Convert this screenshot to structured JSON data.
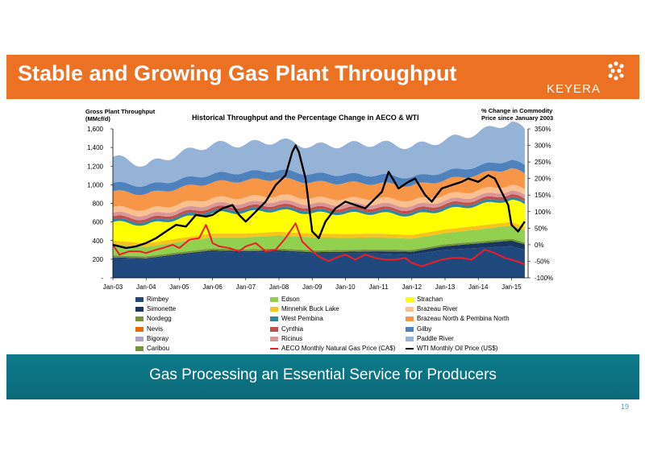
{
  "header": {
    "title": "Stable and Growing Gas Plant Throughput",
    "logo_text": "KEYERA"
  },
  "footer": {
    "banner_text": "Gas Processing an Essential Service for Producers",
    "page_number": "19"
  },
  "colors": {
    "header_orange": "#ec7122",
    "banner_teal": "#0d7a8a",
    "aeco_line": "#ee1c25",
    "wti_line": "#000000"
  },
  "chart_data": {
    "type": "area",
    "title": "Historical Throughput and the Percentage Change in AECO & WTI",
    "ylabel_left": "Gross Plant Throughput (MMcf/d)",
    "ylabel_left_lines": [
      "Gross Plant Throughput",
      "(MMcf/d)"
    ],
    "ylabel_right": "% Change in Commodity Price since January 2003",
    "ylabel_right_lines": [
      "% Change in Commodity",
      "Price since January 2003"
    ],
    "ylim_left": [
      0,
      1600
    ],
    "ylim_right": [
      -100,
      350
    ],
    "left_ticks": [
      "-",
      "200",
      "400",
      "600",
      "800",
      "1,000",
      "1,200",
      "1,400",
      "1,600"
    ],
    "left_tick_values": [
      0,
      200,
      400,
      600,
      800,
      1000,
      1200,
      1400,
      1600
    ],
    "right_ticks": [
      "-100%",
      "-50%",
      "0%",
      "50%",
      "100%",
      "150%",
      "200%",
      "250%",
      "300%",
      "350%"
    ],
    "right_tick_values": [
      -100,
      -50,
      0,
      50,
      100,
      150,
      200,
      250,
      300,
      350
    ],
    "x_ticks": [
      "Jan-03",
      "Jan-04",
      "Jan-05",
      "Jan-06",
      "Jan-07",
      "Jan-08",
      "Jan-09",
      "Jan-10",
      "Jan-11",
      "Jan-12",
      "Jan-13",
      "Jan-14",
      "Jan-15"
    ],
    "x_tick_years": [
      2003,
      2004,
      2005,
      2006,
      2007,
      2008,
      2009,
      2010,
      2011,
      2012,
      2013,
      2014,
      2015
    ],
    "x_range": [
      2003.0,
      2015.5
    ],
    "series": [
      {
        "name": "Rimbey",
        "color": "#1f497d",
        "years": [
          2003,
          2004,
          2005,
          2006,
          2007,
          2008,
          2009,
          2010,
          2011,
          2012,
          2013,
          2014,
          2015,
          2015.4
        ],
        "values": [
          210,
          200,
          240,
          280,
          270,
          280,
          260,
          260,
          260,
          250,
          300,
          320,
          340,
          300
        ]
      },
      {
        "name": "Simonette",
        "color": "#17375e",
        "years": [
          2003,
          2004,
          2005,
          2006,
          2007,
          2008,
          2009,
          2010,
          2011,
          2012,
          2013,
          2014,
          2015,
          2015.4
        ],
        "values": [
          10,
          10,
          15,
          15,
          15,
          15,
          15,
          20,
          25,
          30,
          40,
          50,
          60,
          60
        ]
      },
      {
        "name": "Nordegg",
        "color": "#76923c",
        "years": [
          2003,
          2004,
          2005,
          2006,
          2007,
          2008,
          2009,
          2010,
          2011,
          2012,
          2013,
          2014,
          2015,
          2015.4
        ],
        "values": [
          20,
          20,
          20,
          20,
          20,
          20,
          20,
          20,
          20,
          20,
          20,
          20,
          20,
          20
        ]
      },
      {
        "name": "Nevis",
        "color": "#e46c0a",
        "years": [
          2003,
          2004,
          2005,
          2006,
          2007,
          2008,
          2009,
          2010,
          2011,
          2012,
          2013,
          2014,
          2015,
          2015.4
        ],
        "values": [
          0,
          0,
          0,
          0,
          0,
          0,
          0,
          0,
          0,
          0,
          0,
          0,
          0,
          0
        ]
      },
      {
        "name": "Bigoray",
        "color": "#b3a2c7",
        "years": [
          2003,
          2004,
          2005,
          2006,
          2007,
          2008,
          2009,
          2010,
          2011,
          2012,
          2013,
          2014,
          2015,
          2015.4
        ],
        "values": [
          0,
          0,
          0,
          0,
          0,
          0,
          0,
          0,
          0,
          0,
          0,
          0,
          0,
          0
        ]
      },
      {
        "name": "Caribou",
        "color": "#77933c",
        "years": [
          2003,
          2004,
          2005,
          2006,
          2007,
          2008,
          2009,
          2010,
          2011,
          2012,
          2013,
          2014,
          2015,
          2015.4
        ],
        "values": [
          0,
          0,
          0,
          0,
          0,
          0,
          0,
          0,
          0,
          0,
          0,
          0,
          0,
          0
        ]
      },
      {
        "name": "Edson",
        "color": "#92d050",
        "years": [
          2003,
          2004,
          2005,
          2006,
          2007,
          2008,
          2009,
          2010,
          2011,
          2012,
          2013,
          2014,
          2015,
          2015.4
        ],
        "values": [
          120,
          100,
          110,
          120,
          130,
          140,
          140,
          130,
          130,
          120,
          120,
          130,
          140,
          130
        ]
      },
      {
        "name": "Minnehik Buck Lake",
        "color": "#f7c31d",
        "years": [
          2003,
          2004,
          2005,
          2006,
          2007,
          2008,
          2009,
          2010,
          2011,
          2012,
          2013,
          2014,
          2015,
          2015.4
        ],
        "values": [
          40,
          40,
          40,
          40,
          40,
          40,
          40,
          40,
          40,
          40,
          40,
          40,
          40,
          40
        ]
      },
      {
        "name": "West Pembina",
        "color": "#31859c",
        "years": [
          2003,
          2004,
          2005,
          2006,
          2007,
          2008,
          2009,
          2010,
          2011,
          2012,
          2013,
          2014,
          2015,
          2015.4
        ],
        "values": [
          30,
          30,
          30,
          30,
          30,
          30,
          30,
          30,
          30,
          30,
          30,
          30,
          30,
          30
        ]
      },
      {
        "name": "Cynthia",
        "color": "#c0504d",
        "years": [
          2003,
          2004,
          2005,
          2006,
          2007,
          2008,
          2009,
          2010,
          2011,
          2012,
          2013,
          2014,
          2015,
          2015.4
        ],
        "values": [
          30,
          30,
          30,
          30,
          30,
          30,
          30,
          30,
          30,
          30,
          30,
          30,
          30,
          30
        ]
      },
      {
        "name": "Ricinus",
        "color": "#d99694",
        "years": [
          2003,
          2004,
          2005,
          2006,
          2007,
          2008,
          2009,
          2010,
          2011,
          2012,
          2013,
          2014,
          2015,
          2015.4
        ],
        "values": [
          40,
          40,
          40,
          40,
          40,
          40,
          40,
          40,
          40,
          40,
          40,
          40,
          40,
          40
        ]
      },
      {
        "name": "AECO Monthly Natural Gas Price (CA$)",
        "color": "#ee1c25",
        "is_line": true
      },
      {
        "name": "Strachan",
        "color": "#ffff00",
        "years": [
          2003,
          2004,
          2005,
          2006,
          2007,
          2008,
          2009,
          2010,
          2011,
          2012,
          2013,
          2014,
          2015,
          2015.4
        ],
        "values": [
          200,
          200,
          210,
          220,
          230,
          230,
          220,
          220,
          220,
          210,
          210,
          220,
          240,
          230
        ]
      },
      {
        "name": "Brazeau River",
        "color": "#fac090",
        "years": [
          2003,
          2004,
          2005,
          2006,
          2007,
          2008,
          2009,
          2010,
          2011,
          2012,
          2013,
          2014,
          2015,
          2015.4
        ],
        "values": [
          60,
          60,
          60,
          60,
          60,
          60,
          60,
          60,
          60,
          60,
          60,
          60,
          60,
          60
        ]
      },
      {
        "name": "Brazeau North & Pembina North",
        "color": "#f79646",
        "years": [
          2003,
          2004,
          2005,
          2006,
          2007,
          2008,
          2009,
          2010,
          2011,
          2012,
          2013,
          2014,
          2015,
          2015.4
        ],
        "values": [
          170,
          170,
          170,
          170,
          180,
          180,
          170,
          170,
          160,
          160,
          160,
          170,
          180,
          170
        ]
      },
      {
        "name": "Gilby",
        "color": "#4f81bd",
        "years": [
          2003,
          2004,
          2005,
          2006,
          2007,
          2008,
          2009,
          2010,
          2011,
          2012,
          2013,
          2014,
          2015,
          2015.4
        ],
        "values": [
          90,
          90,
          90,
          90,
          90,
          90,
          90,
          90,
          90,
          90,
          90,
          90,
          90,
          90
        ]
      },
      {
        "name": "Paddle River",
        "color": "#95b3d7",
        "years": [
          2003,
          2004,
          2005,
          2006,
          2007,
          2008,
          2009,
          2010,
          2011,
          2012,
          2013,
          2014,
          2015,
          2015.4
        ],
        "values": [
          280,
          220,
          280,
          320,
          300,
          320,
          300,
          320,
          340,
          330,
          340,
          360,
          410,
          380
        ]
      },
      {
        "name": "WTI Monthly Oil Price (US$)",
        "color": "#000000",
        "is_line": true
      }
    ],
    "lines": {
      "aeco": {
        "name": "AECO Monthly Natural Gas Price (CA$)",
        "years": [
          2003.0,
          2003.2,
          2003.5,
          2003.8,
          2004.0,
          2004.3,
          2004.5,
          2004.8,
          2005.0,
          2005.3,
          2005.6,
          2005.8,
          2005.9,
          2006.0,
          2006.2,
          2006.5,
          2006.8,
          2007.0,
          2007.3,
          2007.6,
          2007.9,
          2008.2,
          2008.4,
          2008.5,
          2008.7,
          2008.9,
          2009.2,
          2009.5,
          2009.7,
          2010.0,
          2010.3,
          2010.6,
          2010.9,
          2011.2,
          2011.5,
          2011.8,
          2012.0,
          2012.3,
          2012.6,
          2012.9,
          2013.2,
          2013.5,
          2013.8,
          2014.0,
          2014.2,
          2014.5,
          2014.8,
          2015.0,
          2015.3,
          2015.4
        ],
        "values": [
          0,
          -30,
          -20,
          -20,
          -25,
          -15,
          -10,
          0,
          -10,
          15,
          20,
          60,
          35,
          5,
          -5,
          -10,
          -20,
          -5,
          5,
          -20,
          -15,
          20,
          50,
          65,
          10,
          -10,
          -35,
          -50,
          -40,
          -30,
          -45,
          -30,
          -40,
          -45,
          -45,
          -40,
          -55,
          -65,
          -55,
          -45,
          -40,
          -40,
          -45,
          -30,
          -15,
          -25,
          -40,
          -45,
          -55,
          -60
        ]
      },
      "wti": {
        "name": "WTI Monthly Oil Price (US$)",
        "years": [
          2003.0,
          2003.2,
          2003.4,
          2003.7,
          2004.0,
          2004.3,
          2004.6,
          2004.9,
          2005.2,
          2005.5,
          2005.8,
          2006.0,
          2006.3,
          2006.6,
          2006.8,
          2007.0,
          2007.3,
          2007.6,
          2007.9,
          2008.2,
          2008.4,
          2008.5,
          2008.6,
          2008.8,
          2009.0,
          2009.2,
          2009.4,
          2009.7,
          2010.0,
          2010.3,
          2010.6,
          2010.9,
          2011.1,
          2011.3,
          2011.6,
          2011.9,
          2012.1,
          2012.4,
          2012.6,
          2012.9,
          2013.2,
          2013.5,
          2013.7,
          2014.0,
          2014.3,
          2014.5,
          2014.7,
          2014.9,
          2015.0,
          2015.2,
          2015.4
        ],
        "values": [
          0,
          -5,
          -10,
          -5,
          5,
          20,
          40,
          60,
          55,
          90,
          85,
          90,
          110,
          120,
          90,
          70,
          100,
          130,
          180,
          210,
          280,
          300,
          280,
          200,
          40,
          20,
          70,
          110,
          130,
          120,
          110,
          140,
          160,
          220,
          170,
          190,
          200,
          150,
          130,
          170,
          180,
          190,
          200,
          190,
          210,
          200,
          160,
          120,
          60,
          40,
          70
        ]
      }
    },
    "legend_position": "bottom",
    "grid": false
  }
}
